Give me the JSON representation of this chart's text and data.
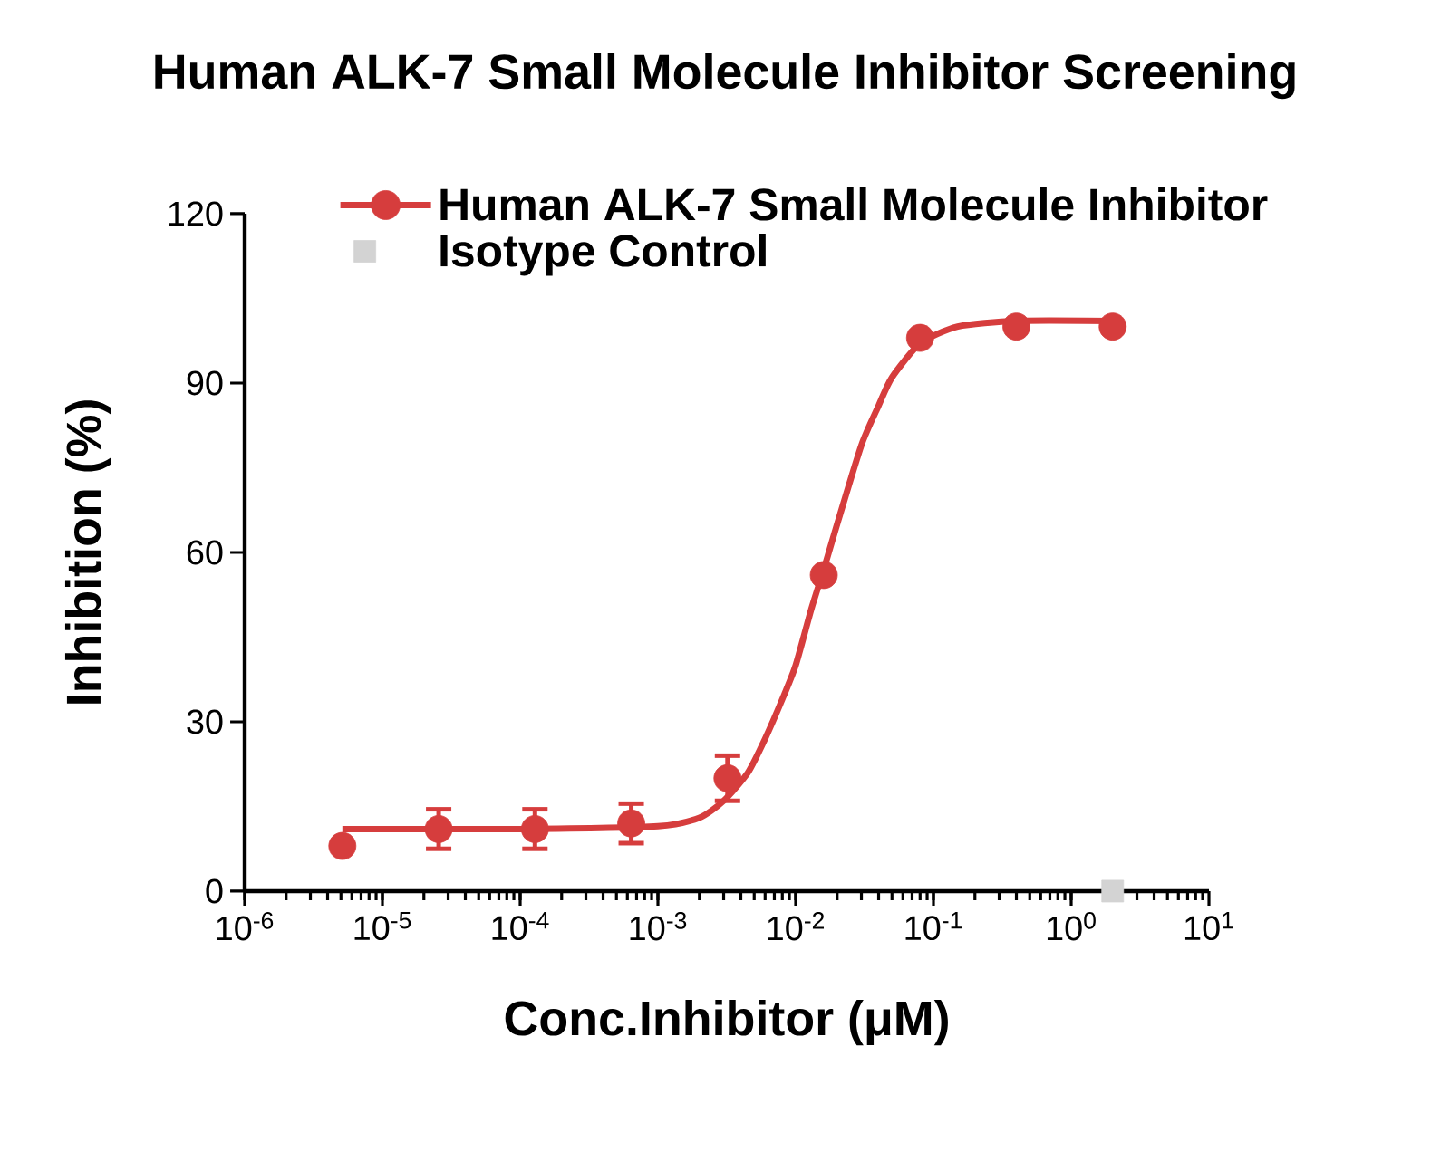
{
  "chart_data": {
    "type": "scatter",
    "title": "Human ALK-7 Small Molecule Inhibitor Screening",
    "xlabel": "Conc.Inhibitor (μM)",
    "ylabel": "Inhibition (%)",
    "log": "x",
    "xlim": [
      1e-06,
      10
    ],
    "xticks": [
      {
        "value": 1e-06,
        "label": "10$^{-6}$"
      },
      {
        "value": 1e-05,
        "label": "10$^{-5}$"
      },
      {
        "value": 0.0001,
        "label": "10$^{-4}$"
      },
      {
        "value": 0.001,
        "label": "10$^{-3}$"
      },
      {
        "value": 0.01,
        "label": "10$^{-2}$"
      },
      {
        "value": 0.1,
        "label": "10$^{-1}$"
      },
      {
        "value": 1,
        "label": "10$^{0}$"
      },
      {
        "value": 10,
        "label": "10$^{1}$"
      }
    ],
    "ylim": [
      0,
      120
    ],
    "yticks": [
      0,
      30,
      60,
      90,
      120
    ],
    "legend": "top",
    "series": [
      {
        "name": "Human ALK-7 Small Molecule Inhibitor",
        "marker": "circle",
        "color": "#d63d3d",
        "x": [
          5.12e-06,
          2.56e-05,
          0.000128,
          0.00064,
          0.0032,
          0.016,
          0.08,
          0.4,
          2
        ],
        "values": [
          8,
          11,
          11,
          12,
          20,
          56,
          98,
          100,
          100
        ],
        "errors": [
          null,
          3.5,
          3.5,
          3.5,
          4,
          null,
          null,
          null,
          null
        ]
      },
      {
        "type": "line",
        "color": "#d63d3d",
        "x": [
          5.12e-06,
          0.0001,
          0.001,
          0.002,
          0.003,
          0.0045,
          0.006,
          0.008,
          0.01,
          0.013,
          0.016,
          0.02,
          0.03,
          0.04,
          0.05,
          0.08,
          0.15,
          0.4,
          2
        ],
        "values": [
          11,
          11,
          11.5,
          13,
          16,
          21,
          27,
          34,
          40,
          50,
          57,
          65,
          79,
          86,
          91,
          97,
          100,
          101,
          101
        ]
      },
      {
        "name": "Isotype Control",
        "marker": "square",
        "color": "#d3d3d3",
        "x": [
          2
        ],
        "values": [
          0
        ]
      }
    ]
  }
}
